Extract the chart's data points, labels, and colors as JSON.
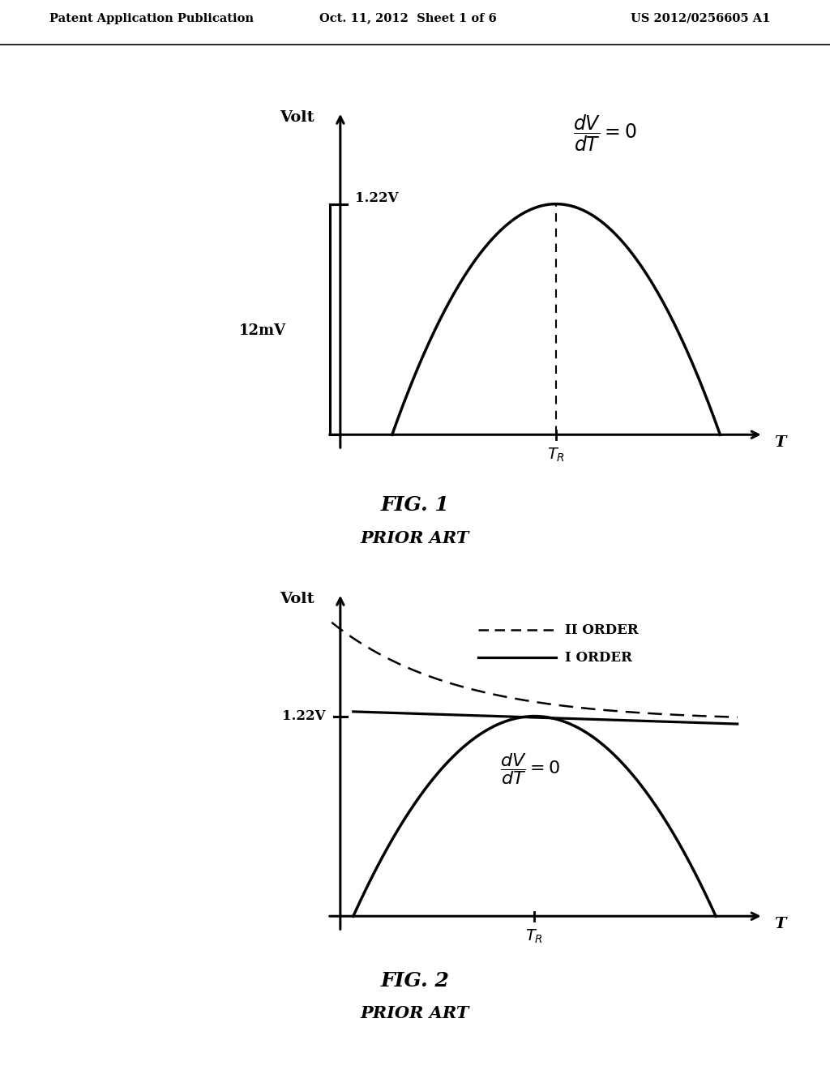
{
  "header_left": "Patent Application Publication",
  "header_center": "Oct. 11, 2012  Sheet 1 of 6",
  "header_right": "US 2012/0256605 A1",
  "fig1_title": "FIG. 1",
  "fig1_subtitle": "PRIOR ART",
  "fig2_title": "FIG. 2",
  "fig2_subtitle": "PRIOR ART",
  "bg_color": "#ffffff",
  "curve_color": "#000000",
  "font_color": "#000000"
}
